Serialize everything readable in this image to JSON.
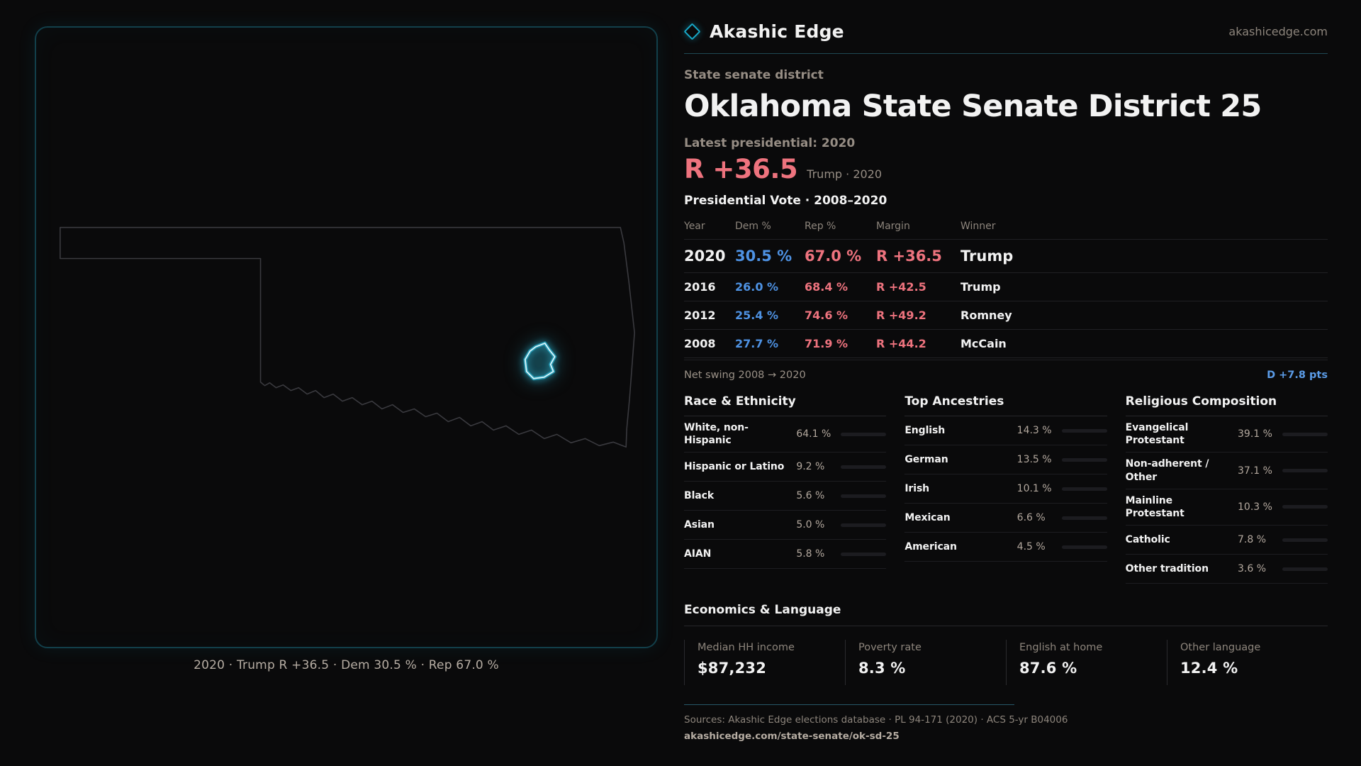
{
  "brand": {
    "name": "Akashic Edge",
    "site": "akashicedge.com"
  },
  "map": {
    "caption": "2020 · Trump R +36.5 · Dem 30.5 % · Rep 67.0 %",
    "state": "Oklahoma",
    "accent_color": "#2fc7e8"
  },
  "header": {
    "eyebrow": "State senate district",
    "title": "Oklahoma State Senate District 25",
    "latest_label": "Latest presidential: 2020",
    "margin_value": "R +36.5",
    "margin_note": "Trump · 2020",
    "margin_color": "#ee737e"
  },
  "table": {
    "title": "Presidential Vote · 2008–2020",
    "columns": [
      "Year",
      "Dem %",
      "Rep %",
      "Margin",
      "Winner"
    ],
    "rows": [
      {
        "year": "2020",
        "dem": "30.5 %",
        "rep": "67.0 %",
        "margin": "R +36.5",
        "winner": "Trump"
      },
      {
        "year": "2016",
        "dem": "26.0 %",
        "rep": "68.4 %",
        "margin": "R +42.5",
        "winner": "Trump"
      },
      {
        "year": "2012",
        "dem": "25.4 %",
        "rep": "74.6 %",
        "margin": "R +49.2",
        "winner": "Romney"
      },
      {
        "year": "2008",
        "dem": "27.7 %",
        "rep": "71.9 %",
        "margin": "R +44.2",
        "winner": "McCain"
      }
    ],
    "dem_color": "#4e92e3",
    "rep_color": "#ee737e"
  },
  "net_swing": {
    "label": "Net swing 2008 → 2020",
    "value": "D +7.8 pts",
    "value_color": "#5b9ce8"
  },
  "demographics": {
    "race": {
      "title": "Race & Ethnicity",
      "rows": [
        {
          "label": "White, non-Hispanic",
          "value": "64.1 %",
          "pct": 64.1,
          "color": "#8e9cb8"
        },
        {
          "label": "Hispanic or Latino",
          "value": "9.2 %",
          "pct": 9.2,
          "color": "#e5a43c"
        },
        {
          "label": "Black",
          "value": "5.6 %",
          "pct": 5.6,
          "color": "#9d8df2"
        },
        {
          "label": "Asian",
          "value": "5.0 %",
          "pct": 5.0,
          "color": "#3cc594"
        },
        {
          "label": "AIAN",
          "value": "5.8 %",
          "pct": 5.8,
          "color": "#d9922d"
        }
      ]
    },
    "ancestries": {
      "title": "Top Ancestries",
      "rows": [
        {
          "label": "English",
          "value": "14.3 %",
          "pct": 14.3,
          "color": "#a9c3de"
        },
        {
          "label": "German",
          "value": "13.5 %",
          "pct": 13.5,
          "color": "#a9c3de"
        },
        {
          "label": "Irish",
          "value": "10.1 %",
          "pct": 10.1,
          "color": "#a9c3de"
        },
        {
          "label": "Mexican",
          "value": "6.6 %",
          "pct": 6.6,
          "color": "#e5a43c"
        },
        {
          "label": "American",
          "value": "4.5 %",
          "pct": 4.5,
          "color": "#a9c3de"
        }
      ]
    },
    "religion": {
      "title": "Religious Composition",
      "rows": [
        {
          "label": "Evangelical Protestant",
          "value": "39.1 %",
          "pct": 39.1,
          "color": "#e26d76"
        },
        {
          "label": "Non-adherent / Other",
          "value": "37.1 %",
          "pct": 37.1,
          "color": "#727d92"
        },
        {
          "label": "Mainline Protestant",
          "value": "10.3 %",
          "pct": 10.3,
          "color": "#4f93e0"
        },
        {
          "label": "Catholic",
          "value": "7.8 %",
          "pct": 7.8,
          "color": "#e6c33e"
        },
        {
          "label": "Other tradition",
          "value": "3.6 %",
          "pct": 3.6,
          "color": "#9fb0c0"
        }
      ]
    }
  },
  "economics": {
    "title": "Economics & Language",
    "stats": [
      {
        "label": "Median HH income",
        "value": "$87,232"
      },
      {
        "label": "Poverty rate",
        "value": "8.3 %"
      },
      {
        "label": "English at home",
        "value": "87.6 %"
      },
      {
        "label": "Other language",
        "value": "12.4 %"
      }
    ]
  },
  "footer": {
    "sources": "Sources: Akashic Edge elections database · PL 94-171 (2020) · ACS 5-yr B04006",
    "permalink": "akashicedge.com/state-senate/ok-sd-25"
  }
}
